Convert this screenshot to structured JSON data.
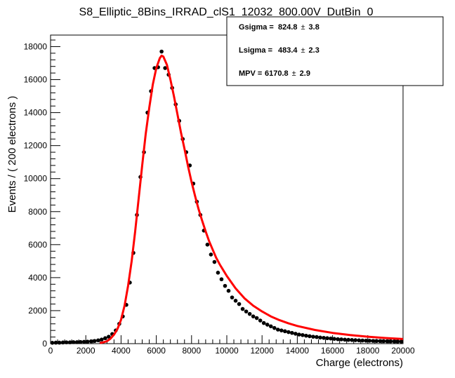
{
  "chart_data": {
    "type": "scatter",
    "title": "S8_Elliptic_8Bins_IRRAD_clS1_12032_800.00V_DutBin_0",
    "xlabel": "Charge (electrons)",
    "ylabel": "Events / ( 200 electrons )",
    "xlim": [
      0,
      20000
    ],
    "ylim": [
      0,
      18700
    ],
    "xticks": [
      0,
      2000,
      4000,
      6000,
      8000,
      10000,
      12000,
      14000,
      16000,
      18000,
      20000
    ],
    "yticks": [
      0,
      2000,
      4000,
      6000,
      8000,
      10000,
      12000,
      14000,
      16000,
      18000
    ],
    "grid": false,
    "stats_box": {
      "position": "top-right",
      "entries": [
        {
          "label": "Gsigma =",
          "value": "824.8",
          "pm": "±",
          "error": "3.8"
        },
        {
          "label": "Lsigma =",
          "value": "483.4",
          "pm": "±",
          "error": "2.3"
        },
        {
          "label": "MPV =",
          "value": "6170.8",
          "pm": "±",
          "error": "2.9"
        }
      ]
    },
    "series": [
      {
        "kind": "points",
        "color": "#000000",
        "x": [
          100,
          300,
          500,
          700,
          900,
          1100,
          1300,
          1500,
          1700,
          1900,
          2100,
          2300,
          2500,
          2700,
          2900,
          3100,
          3300,
          3500,
          3700,
          3900,
          4100,
          4300,
          4500,
          4700,
          4900,
          5100,
          5300,
          5500,
          5700,
          5900,
          6100,
          6300,
          6500,
          6700,
          6900,
          7100,
          7300,
          7500,
          7700,
          7900,
          8100,
          8300,
          8500,
          8700,
          8900,
          9100,
          9300,
          9500,
          9700,
          9900,
          10100,
          10300,
          10500,
          10700,
          10900,
          11100,
          11300,
          11500,
          11700,
          11900,
          12100,
          12300,
          12500,
          12700,
          12900,
          13100,
          13300,
          13500,
          13700,
          13900,
          14100,
          14300,
          14500,
          14700,
          14900,
          15100,
          15300,
          15500,
          15700,
          15900,
          16100,
          16300,
          16500,
          16700,
          16900,
          17100,
          17300,
          17500,
          17700,
          17900,
          18100,
          18300,
          18500,
          18700,
          18900,
          19100,
          19300,
          19500,
          19700,
          19900
        ],
        "y": [
          50,
          60,
          60,
          70,
          80,
          80,
          90,
          90,
          100,
          110,
          120,
          140,
          160,
          200,
          250,
          330,
          420,
          580,
          800,
          1200,
          1650,
          2350,
          3700,
          5500,
          7800,
          10100,
          11600,
          14000,
          15300,
          16700,
          16750,
          17700,
          16700,
          16300,
          15500,
          14500,
          13500,
          12400,
          11600,
          10800,
          9700,
          8600,
          7800,
          6850,
          6000,
          5400,
          4950,
          4300,
          3900,
          3500,
          3200,
          2800,
          2600,
          2400,
          2100,
          1950,
          1800,
          1650,
          1550,
          1400,
          1250,
          1150,
          1050,
          950,
          850,
          800,
          750,
          700,
          650,
          600,
          550,
          520,
          480,
          450,
          420,
          400,
          370,
          350,
          330,
          310,
          290,
          270,
          260,
          240,
          230,
          220,
          210,
          200,
          190,
          180,
          175,
          165,
          160,
          155,
          150,
          145,
          140,
          135,
          130,
          125
        ]
      },
      {
        "kind": "line",
        "color": "#ff0000",
        "x": [
          2800,
          3000,
          3200,
          3400,
          3600,
          3800,
          4000,
          4200,
          4400,
          4600,
          4800,
          5000,
          5200,
          5400,
          5600,
          5800,
          6000,
          6200,
          6300,
          6400,
          6600,
          6800,
          7000,
          7200,
          7400,
          7600,
          7800,
          8000,
          8200,
          8400,
          8600,
          8800,
          9000,
          9200,
          9400,
          9600,
          9800,
          10000,
          10500,
          11000,
          11500,
          12000,
          12500,
          13000,
          13500,
          14000,
          15000,
          16000,
          17000,
          18000,
          19000,
          20000
        ],
        "y": [
          40,
          80,
          150,
          300,
          550,
          900,
          1450,
          2300,
          3500,
          5000,
          6800,
          8800,
          10800,
          12700,
          14300,
          15700,
          16700,
          17300,
          17450,
          17400,
          16900,
          16000,
          15000,
          13900,
          12800,
          11800,
          10750,
          9800,
          8950,
          8150,
          7450,
          6800,
          6200,
          5700,
          5200,
          4800,
          4450,
          4100,
          3350,
          2750,
          2300,
          1950,
          1650,
          1420,
          1230,
          1070,
          830,
          650,
          520,
          420,
          340,
          280
        ]
      }
    ]
  }
}
